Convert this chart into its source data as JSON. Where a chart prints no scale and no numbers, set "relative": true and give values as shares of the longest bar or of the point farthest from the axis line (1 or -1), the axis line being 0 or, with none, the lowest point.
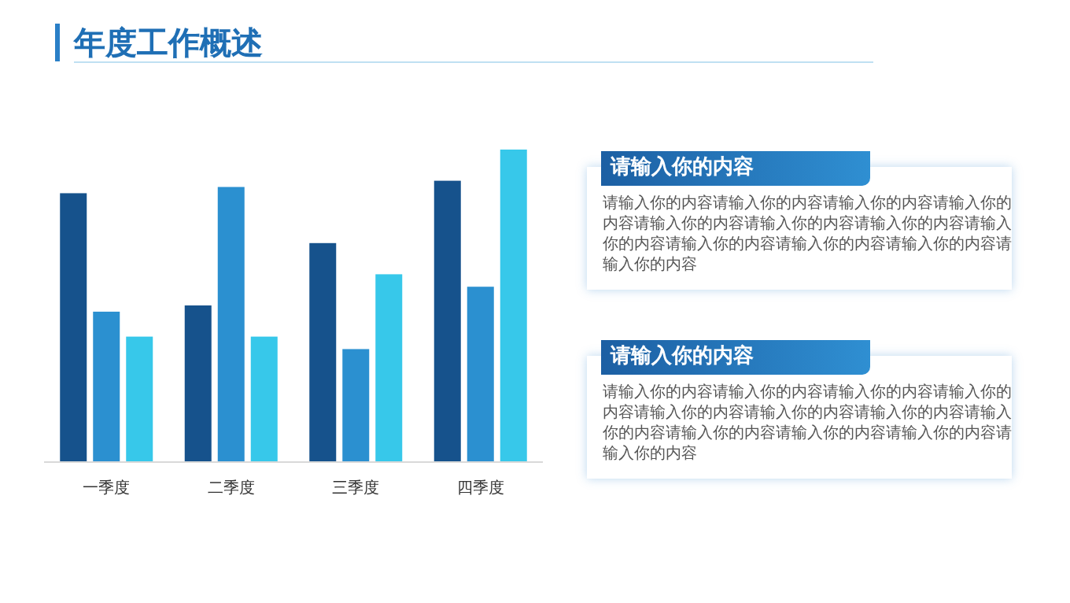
{
  "chart_data": [
    {
      "type": "bar",
      "title": "年度工作概述",
      "relative": true,
      "categories": [
        "一季度",
        "二季度",
        "三季度",
        "四季度"
      ],
      "series": [
        {
          "color": "#16528c",
          "values": [
            0.86,
            0.5,
            0.7,
            0.9
          ]
        },
        {
          "color": "#2b90d0",
          "values": [
            0.48,
            0.88,
            0.36,
            0.56
          ]
        },
        {
          "color": "#37c8ea",
          "values": [
            0.4,
            0.4,
            0.6,
            1
          ]
        }
      ]
    },
    {
      "type": "other",
      "title": "请输入你的内容",
      "annotations": [
        "请输入你的内容请输入你的内容请输入你的内容请输入你的内容请输入你的内容请输入你的内容请输入你的内容请输入你的内容请输入你的内容请输入你的内容请输入你的内容请输入你的内容"
      ]
    },
    {
      "type": "other",
      "title": "请输入你的内容",
      "annotations": [
        "请输入你的内容请输入你的内容请输入你的内容请输入你的内容请输入你的内容请输入你的内容请输入你的内容请输入你的内容请输入你的内容请输入你的内容请输入你的内容请输入你的内容"
      ]
    }
  ]
}
